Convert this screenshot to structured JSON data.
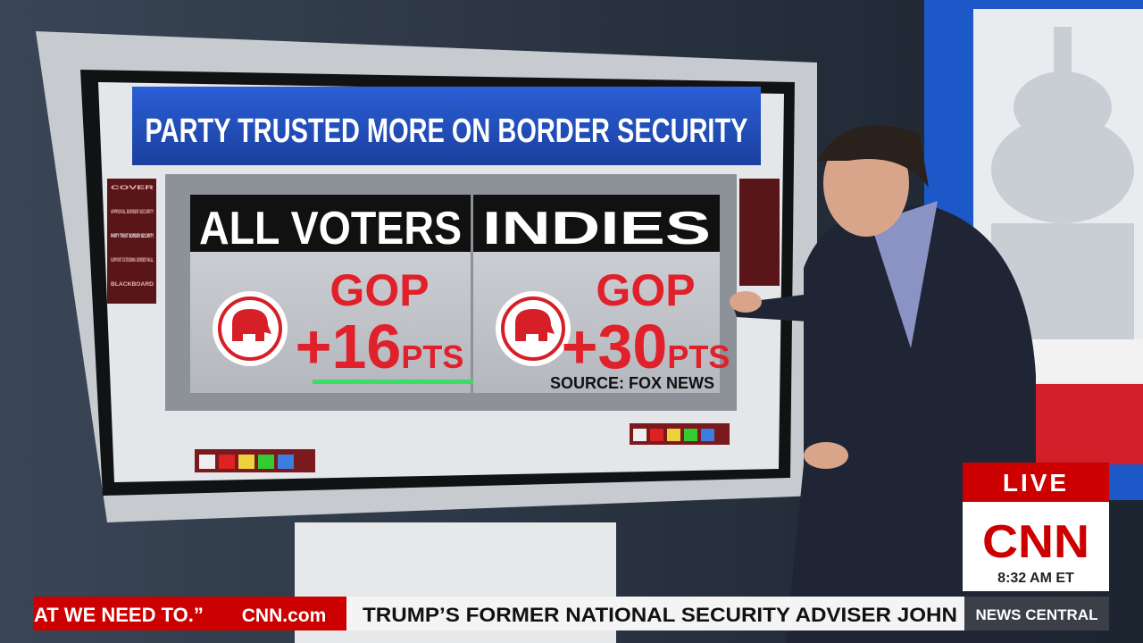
{
  "screen": {
    "title": "PARTY TRUSTED MORE ON BORDER SECURITY",
    "panels": [
      {
        "header": "ALL VOTERS",
        "party": "GOP",
        "margin": "+16",
        "unit": "PTS"
      },
      {
        "header": "INDIES",
        "party": "GOP",
        "margin": "+30",
        "unit": "PTS"
      }
    ],
    "source": "SOURCE: FOX NEWS",
    "menu": [
      "COVER",
      "APPROVAL BORDER SECURITY",
      "PARTY TRUST BORDER SECURITY",
      "SUPPORT EXTENDING BORDER WALL",
      "BLACKBOARD"
    ]
  },
  "bug": {
    "live": "LIVE",
    "network": "CNN",
    "time": "8:32 AM ET"
  },
  "ticker": {
    "quote": "AT WE NEED TO.”",
    "site": "CNN.com",
    "headline": "TRUMP’S FORMER NATIONAL SECURITY ADVISER JOHN",
    "show": "NEWS CENTRAL"
  }
}
